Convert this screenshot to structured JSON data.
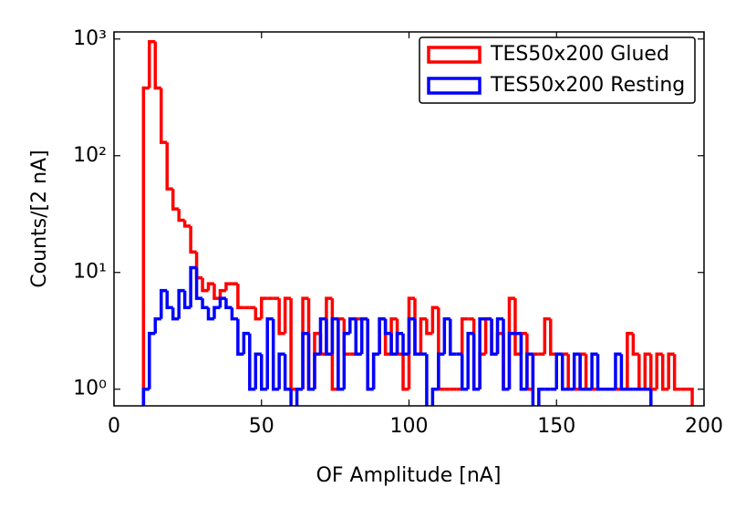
{
  "chart_data": {
    "type": "histogram",
    "xlabel": "OF Amplitude [nA]",
    "ylabel": "Counts/[2 nA]",
    "log_y": true,
    "xlim": [
      0,
      200
    ],
    "xticks": [
      0,
      50,
      100,
      150,
      200
    ],
    "ylim": [
      0.72,
      1150
    ],
    "yticks": [
      {
        "value": 1,
        "label": "10⁰"
      },
      {
        "value": 10,
        "label": "10¹"
      },
      {
        "value": 100,
        "label": "10²"
      },
      {
        "value": 1000,
        "label": "10³"
      }
    ],
    "legend_loc": "upper right",
    "bins": [
      10,
      12,
      14,
      16,
      18,
      20,
      22,
      24,
      26,
      28,
      30,
      32,
      34,
      36,
      38,
      40,
      42,
      44,
      46,
      48,
      50,
      52,
      54,
      56,
      58,
      60,
      62,
      64,
      66,
      68,
      70,
      72,
      74,
      76,
      78,
      80,
      82,
      84,
      86,
      88,
      90,
      92,
      94,
      96,
      98,
      100,
      102,
      104,
      106,
      108,
      110,
      112,
      114,
      116,
      118,
      120,
      122,
      124,
      126,
      128,
      130,
      132,
      134,
      136,
      138,
      140,
      142,
      144,
      146,
      148,
      150,
      152,
      154,
      156,
      158,
      160,
      162,
      164,
      166,
      168,
      170,
      172,
      174,
      176,
      178,
      180,
      182,
      184,
      186,
      188,
      190,
      192,
      194,
      196
    ],
    "series": [
      {
        "name": "TES50x200 Glued",
        "color": "#ff0000",
        "values": [
          380,
          950,
          380,
          130,
          52,
          35,
          28,
          25,
          15,
          9,
          7,
          8,
          6,
          7,
          8,
          8,
          5,
          5,
          5,
          4,
          6,
          6,
          6,
          3,
          6,
          1,
          1,
          6,
          1,
          3,
          2,
          6,
          1,
          4,
          2,
          2,
          4,
          4,
          1,
          2,
          4,
          2,
          4,
          2,
          1,
          6,
          2,
          4,
          3,
          5,
          1,
          1,
          1,
          1,
          4,
          4,
          1,
          2,
          4,
          2,
          3,
          1,
          6,
          2,
          3,
          1,
          2,
          2,
          4,
          2,
          2,
          2,
          1,
          1,
          2,
          1,
          1,
          1,
          1,
          1,
          1,
          1,
          3,
          2,
          1,
          2,
          1,
          2,
          1,
          2,
          1,
          1,
          1
        ]
      },
      {
        "name": "TES50x200 Resting",
        "color": "#0000ff",
        "values": [
          1,
          3,
          4,
          7,
          5,
          4,
          7,
          5,
          11,
          6,
          5,
          4,
          5,
          6,
          5,
          4,
          2,
          3,
          1,
          2,
          1,
          4,
          1,
          2,
          1,
          0,
          1,
          3,
          1,
          2,
          4,
          2,
          4,
          1,
          3,
          4,
          2,
          4,
          1,
          2,
          4,
          3,
          2,
          3,
          2,
          4,
          2,
          2,
          0,
          1,
          2,
          4,
          2,
          2,
          1,
          3,
          1,
          4,
          4,
          2,
          4,
          1,
          3,
          3,
          1,
          2,
          0,
          1,
          1,
          1,
          2,
          1,
          1,
          2,
          1,
          1,
          2,
          1,
          1,
          1,
          2,
          1,
          1,
          1,
          1,
          1,
          0,
          0,
          0,
          0,
          0,
          0,
          0
        ]
      }
    ]
  }
}
